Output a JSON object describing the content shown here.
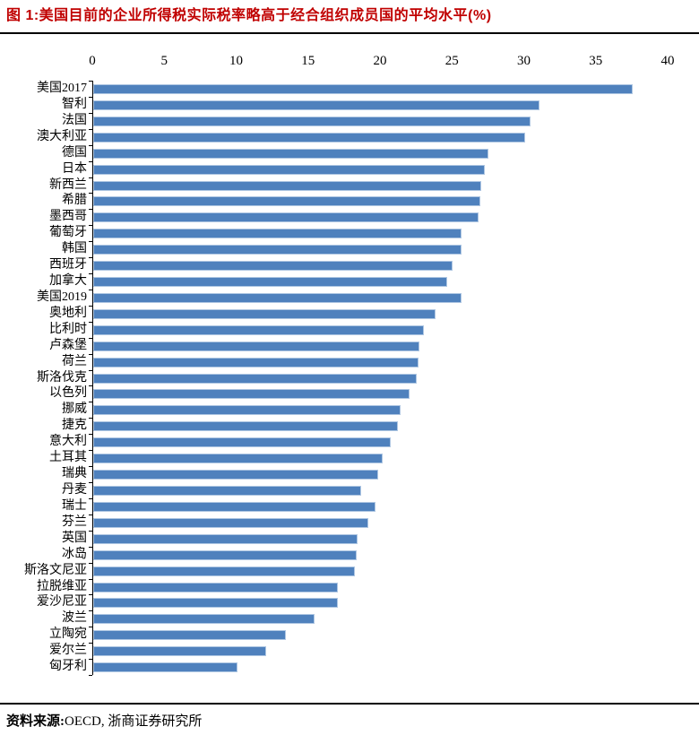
{
  "header": {
    "title": "图 1:美国目前的企业所得税实际税率略高于经合组织成员国的平均水平(%)"
  },
  "footer": {
    "source_label": "资料来源:",
    "source_value": "OECD, 浙商证券研究所"
  },
  "colors": {
    "title_text": "#c00000",
    "rule": "#000000",
    "bar_fill": "#4f81bd",
    "bar_border": "#aec6e2"
  },
  "chart_data": {
    "type": "bar",
    "orientation": "horizontal",
    "title": "美国目前的企业所得税实际税率略高于经合组织成员国的平均水平(%)",
    "xlabel": "",
    "ylabel": "",
    "xlim": [
      0,
      40
    ],
    "x_ticks": [
      0,
      5,
      10,
      15,
      20,
      25,
      30,
      35,
      40
    ],
    "grid": false,
    "legend": "none",
    "axis_position": "top",
    "categories": [
      "美国2017",
      "智利",
      "法国",
      "澳大利亚",
      "德国",
      "日本",
      "新西兰",
      "希腊",
      "墨西哥",
      "葡萄牙",
      "韩国",
      "西班牙",
      "加拿大",
      "美国2019",
      "奥地利",
      "比利时",
      "卢森堡",
      "荷兰",
      "斯洛伐克",
      "以色列",
      "挪威",
      "捷克",
      "意大利",
      "土耳其",
      "瑞典",
      "丹麦",
      "瑞士",
      "芬兰",
      "英国",
      "冰岛",
      "斯洛文尼亚",
      "拉脱维亚",
      "爱沙尼亚",
      "波兰",
      "立陶宛",
      "爱尔兰",
      "匈牙利"
    ],
    "values": [
      37.5,
      31.0,
      30.4,
      30.0,
      27.5,
      27.2,
      27.0,
      26.9,
      26.8,
      25.6,
      25.6,
      25.0,
      24.6,
      25.6,
      23.8,
      23.0,
      22.7,
      22.6,
      22.5,
      22.0,
      21.4,
      21.2,
      20.7,
      20.1,
      19.8,
      18.6,
      19.6,
      19.1,
      18.4,
      18.3,
      18.2,
      17.0,
      17.0,
      15.4,
      13.4,
      12.0,
      10.0
    ]
  }
}
